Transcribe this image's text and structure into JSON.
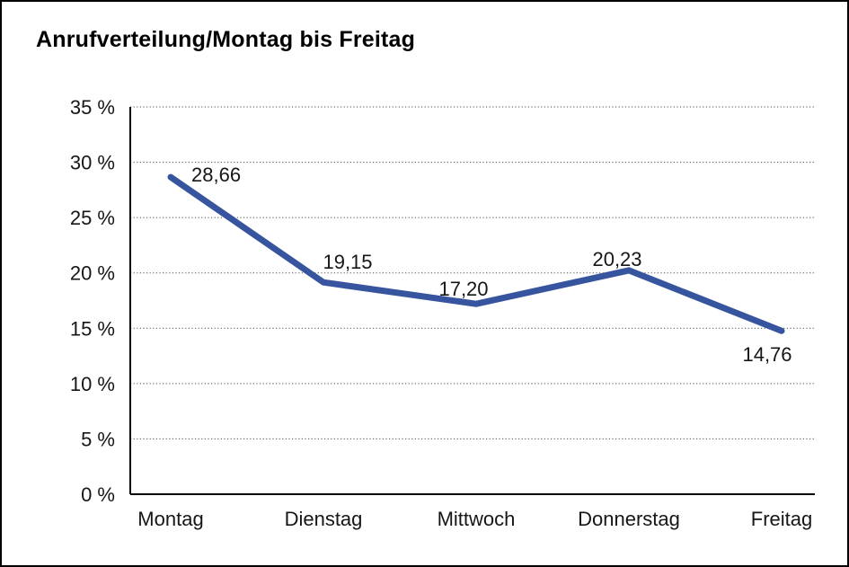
{
  "window": {
    "background": "#ffffff",
    "border_color": "#000000"
  },
  "chart_data": {
    "type": "line",
    "title": "Anrufverteilung/Montag bis Freitag",
    "categories": [
      "Montag",
      "Dienstag",
      "Mittwoch",
      "Donnerstag",
      "Freitag"
    ],
    "values": [
      28.66,
      19.15,
      17.2,
      20.23,
      14.76
    ],
    "value_labels": [
      "28,66",
      "19,15",
      "17,20",
      "20,23",
      "14,76"
    ],
    "y_tick_labels": [
      "0 %",
      "5 %",
      "10 %",
      "15 %",
      "20 %",
      "25 %",
      "30 %",
      "35 %"
    ],
    "ylim": [
      0,
      35
    ],
    "y_step": 5,
    "xlabel": "",
    "ylabel": "",
    "grid": "horizontal-dotted",
    "legend_position": "none",
    "line_color": "#37549F"
  }
}
